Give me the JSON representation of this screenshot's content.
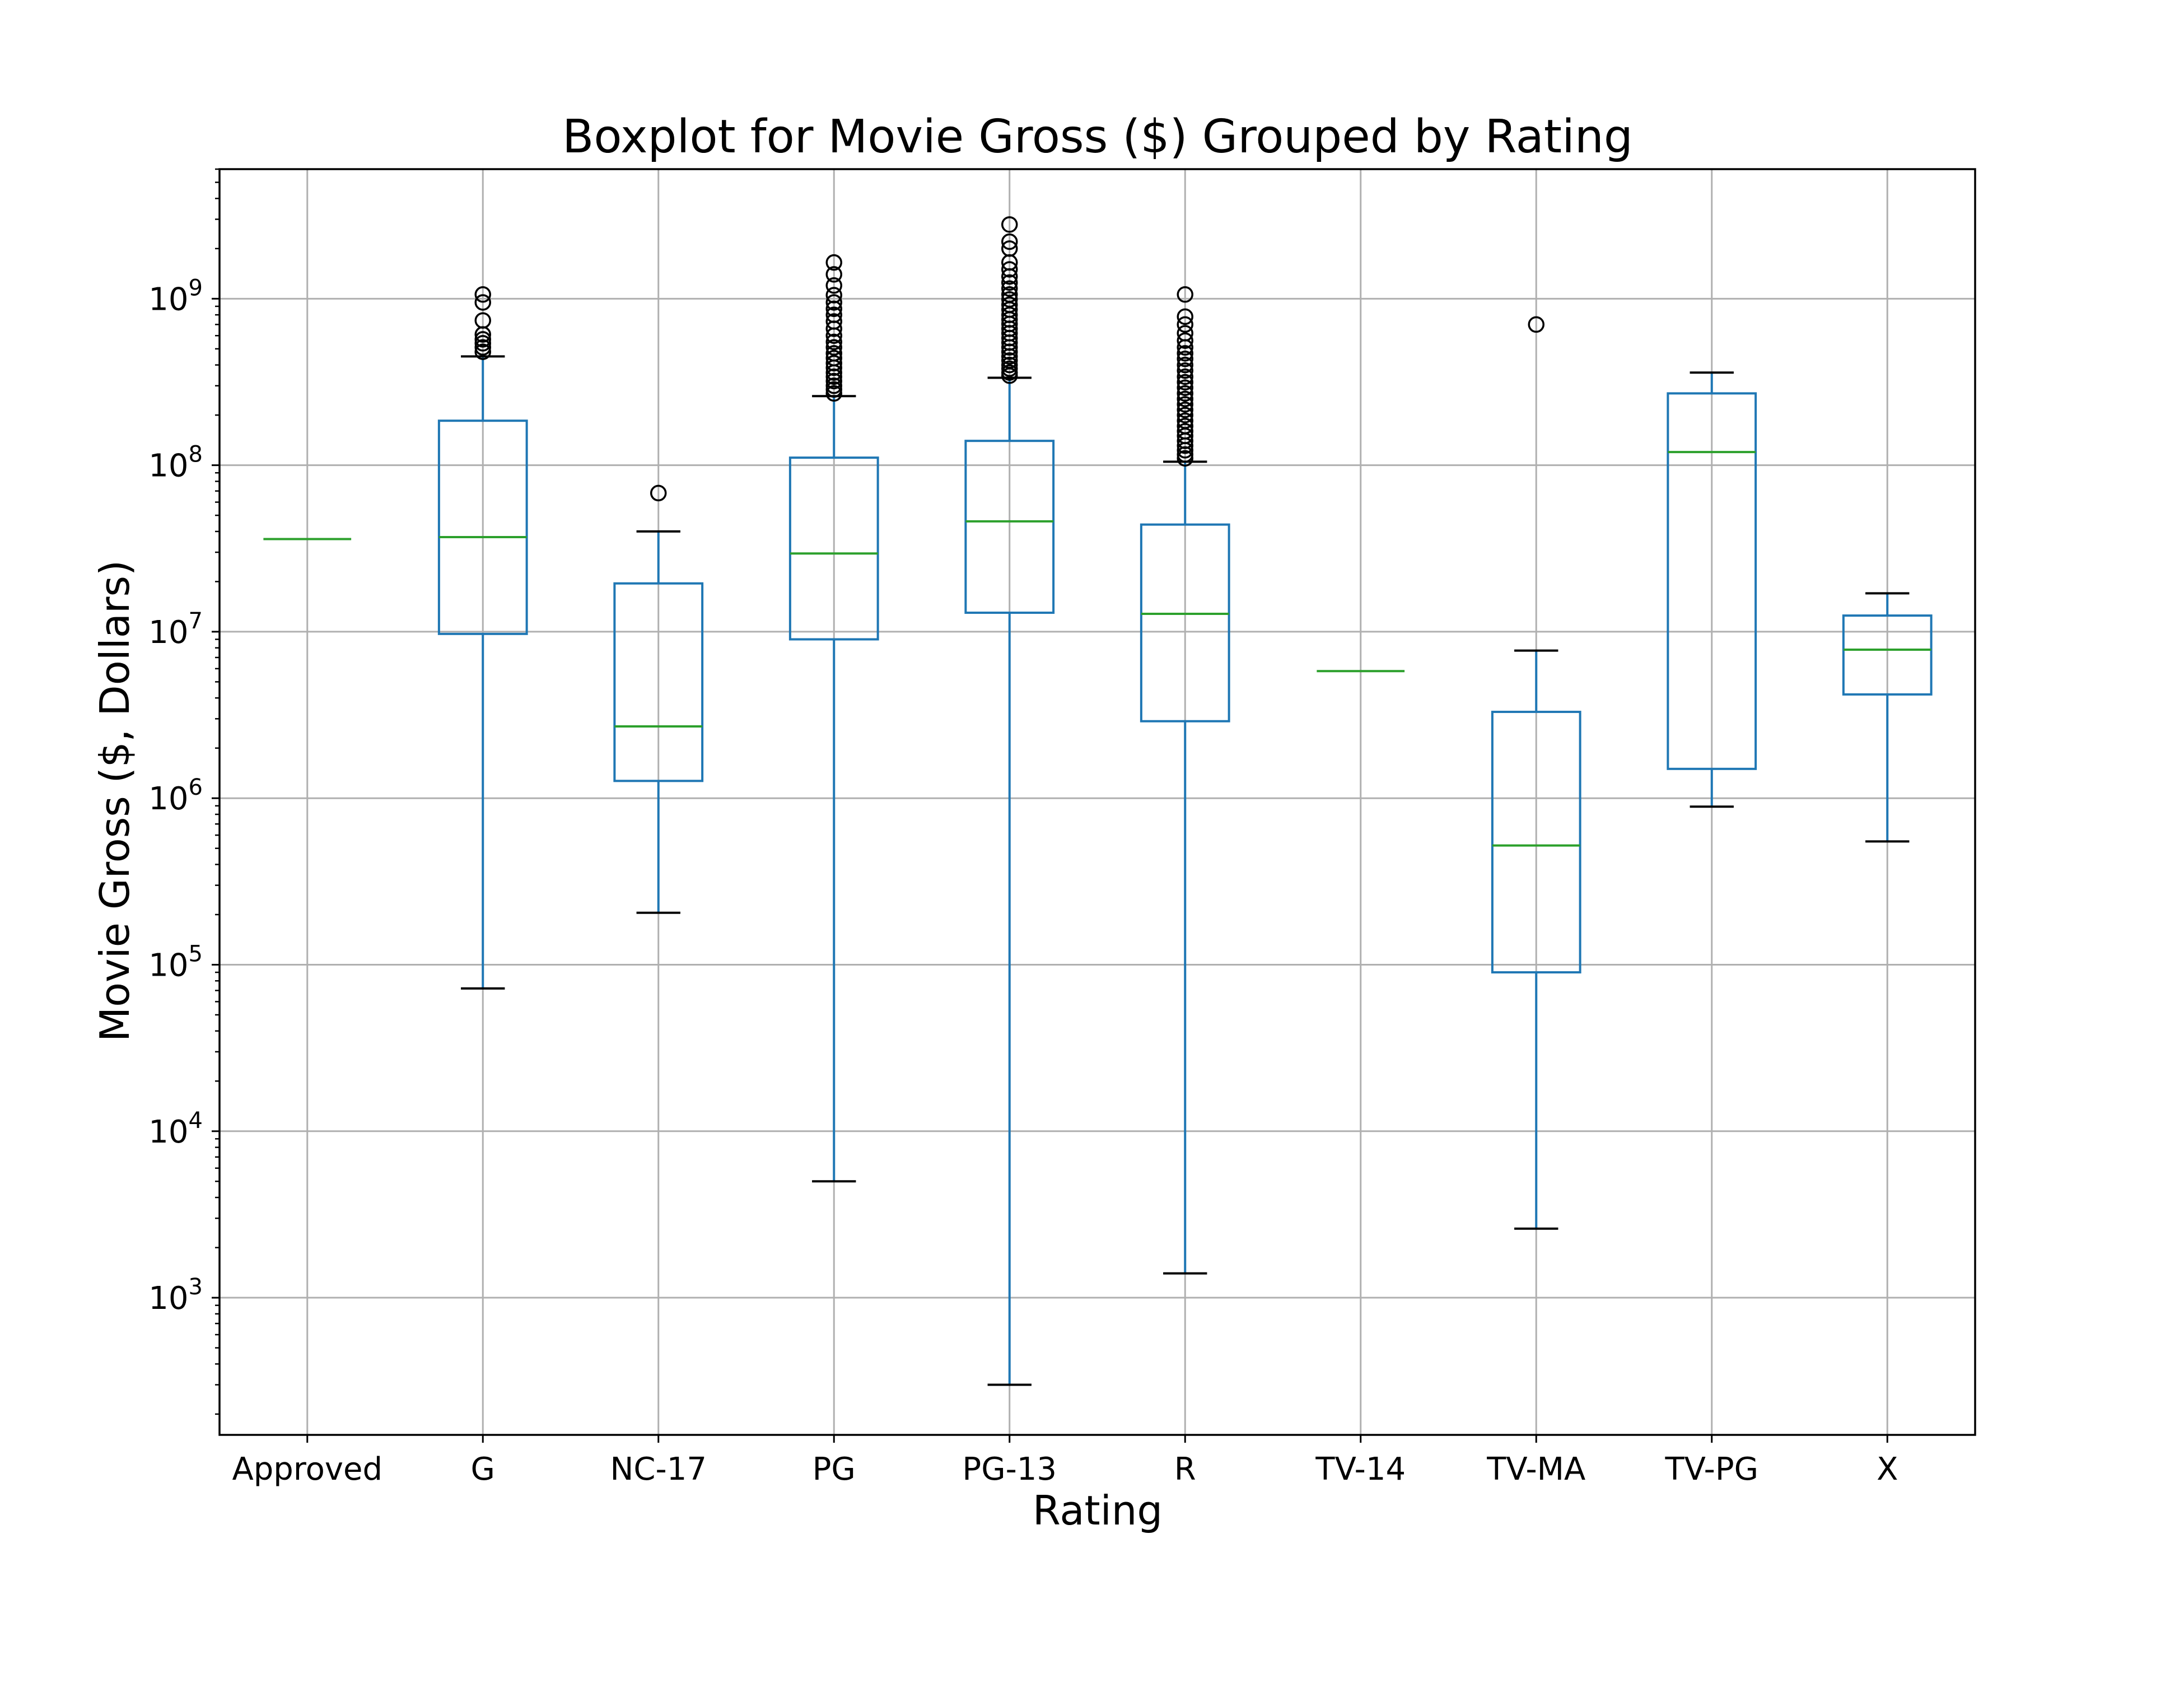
{
  "chart_data": {
    "type": "box",
    "title": "Boxplot for Movie Gross ($) Grouped by Rating",
    "xlabel": "Rating",
    "ylabel": "Movie Gross ($, Dollars)",
    "yscale": "log",
    "ylim": [
      150,
      6000000000
    ],
    "grid": true,
    "y_ticks": [
      {
        "value": 1000,
        "base": "10",
        "exp": "3"
      },
      {
        "value": 10000,
        "base": "10",
        "exp": "4"
      },
      {
        "value": 100000,
        "base": "10",
        "exp": "5"
      },
      {
        "value": 1000000,
        "base": "10",
        "exp": "6"
      },
      {
        "value": 10000000,
        "base": "10",
        "exp": "7"
      },
      {
        "value": 100000000,
        "base": "10",
        "exp": "8"
      },
      {
        "value": 1000000000,
        "base": "10",
        "exp": "9"
      }
    ],
    "categories": [
      "Approved",
      "G",
      "NC-17",
      "PG",
      "PG-13",
      "R",
      "TV-14",
      "TV-MA",
      "TV-PG",
      "X"
    ],
    "boxes": [
      {
        "category": "Approved",
        "whisker_low": 36000000,
        "q1": 36000000,
        "median": 36000000,
        "q3": 36000000,
        "whisker_high": 36000000,
        "outliers": []
      },
      {
        "category": "G",
        "whisker_low": 72000,
        "q1": 9700000,
        "median": 37000000,
        "q3": 185000000,
        "whisker_high": 450000000,
        "outliers": [
          480000000,
          510000000,
          540000000,
          570000000,
          610000000,
          740000000,
          950000000,
          1060000000
        ]
      },
      {
        "category": "NC-17",
        "whisker_low": 205000,
        "q1": 1270000,
        "median": 2700000,
        "q3": 19500000,
        "whisker_high": 40000000,
        "outliers": [
          68000000
        ]
      },
      {
        "category": "PG",
        "whisker_low": 5000,
        "q1": 9000000,
        "median": 29500000,
        "q3": 111000000,
        "whisker_high": 260000000,
        "outliers": [
          270000000,
          285000000,
          300000000,
          320000000,
          340000000,
          360000000,
          385000000,
          410000000,
          440000000,
          470000000,
          510000000,
          550000000,
          600000000,
          660000000,
          730000000,
          800000000,
          870000000,
          950000000,
          1050000000,
          1200000000,
          1400000000,
          1650000000
        ]
      },
      {
        "category": "PG-13",
        "whisker_low": 300,
        "q1": 13000000,
        "median": 46000000,
        "q3": 140000000,
        "whisker_high": 335000000,
        "outliers": [
          345000000,
          360000000,
          380000000,
          400000000,
          425000000,
          450000000,
          480000000,
          510000000,
          545000000,
          580000000,
          620000000,
          660000000,
          705000000,
          750000000,
          800000000,
          860000000,
          920000000,
          990000000,
          1060000000,
          1150000000,
          1250000000,
          1360000000,
          1500000000,
          1650000000,
          2000000000,
          2200000000,
          2790000000
        ]
      },
      {
        "category": "R",
        "whisker_low": 1400,
        "q1": 2900000,
        "median": 12800000,
        "q3": 44000000,
        "whisker_high": 105000000,
        "outliers": [
          110000000,
          116000000,
          123000000,
          131000000,
          140000000,
          150000000,
          160000000,
          172000000,
          185000000,
          200000000,
          215000000,
          232000000,
          250000000,
          270000000,
          292000000,
          315000000,
          340000000,
          370000000,
          400000000,
          435000000,
          470000000,
          510000000,
          560000000,
          620000000,
          700000000,
          780000000,
          1060000000
        ]
      },
      {
        "category": "TV-14",
        "whisker_low": 5800000,
        "q1": 5800000,
        "median": 5800000,
        "q3": 5800000,
        "whisker_high": 5800000,
        "outliers": []
      },
      {
        "category": "TV-MA",
        "whisker_low": 2600,
        "q1": 90000,
        "median": 520000,
        "q3": 3300000,
        "whisker_high": 7700000,
        "outliers": [
          700000000
        ]
      },
      {
        "category": "TV-PG",
        "whisker_low": 890000,
        "q1": 1500000,
        "median": 120000000,
        "q3": 270000000,
        "whisker_high": 360000000,
        "outliers": []
      },
      {
        "category": "X",
        "whisker_low": 550000,
        "q1": 4200000,
        "median": 7800000,
        "q3": 12500000,
        "whisker_high": 17000000,
        "outliers": []
      }
    ],
    "colors": {
      "box": "#1f77b4",
      "median": "#2ca02c",
      "cap": "#000000",
      "outlier": "#000000",
      "grid": "#b0b0b0"
    }
  }
}
